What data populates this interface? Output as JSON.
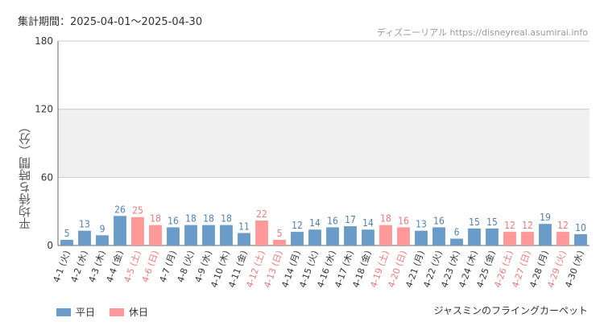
{
  "header": {
    "period": "集計期間：2025-04-01～2025-04-30",
    "source": "ディズニーリアル https://disneyreal.asumirai.info"
  },
  "footer": {
    "attraction": "ジャスミンのフライングカーペット"
  },
  "colors": {
    "weekday": "#6b9bc9",
    "holiday": "#ff9999",
    "weekday_text": "#4f82b3",
    "holiday_text": "#e87a7a",
    "band": "#f0f0f0",
    "grid": "#cccccc"
  },
  "chart_data": {
    "type": "bar",
    "ylabel": "平均待ち時間（分）",
    "ylim": [
      0,
      180
    ],
    "yticks": [
      0,
      60,
      120,
      180
    ],
    "categories": [
      "4-1 (火)",
      "4-2 (水)",
      "4-3 (木)",
      "4-4 (金)",
      "4-5 (土)",
      "4-6 (日)",
      "4-7 (月)",
      "4-8 (火)",
      "4-9 (水)",
      "4-10 (木)",
      "4-11 (金)",
      "4-12 (土)",
      "4-13 (日)",
      "4-14 (月)",
      "4-15 (火)",
      "4-16 (水)",
      "4-17 (木)",
      "4-18 (金)",
      "4-19 (土)",
      "4-20 (日)",
      "4-21 (月)",
      "4-22 (火)",
      "4-23 (水)",
      "4-24 (木)",
      "4-25 (金)",
      "4-26 (土)",
      "4-27 (日)",
      "4-28 (月)",
      "4-29 (火)",
      "4-30 (水)"
    ],
    "values": [
      5,
      13,
      9,
      26,
      25,
      18,
      16,
      18,
      18,
      18,
      11,
      22,
      5,
      12,
      14,
      16,
      17,
      14,
      18,
      16,
      13,
      16,
      6,
      15,
      15,
      12,
      12,
      19,
      12,
      10
    ],
    "holiday": [
      false,
      false,
      false,
      false,
      true,
      true,
      false,
      false,
      false,
      false,
      false,
      true,
      true,
      false,
      false,
      false,
      false,
      false,
      true,
      true,
      false,
      false,
      false,
      false,
      false,
      true,
      true,
      false,
      true,
      false
    ],
    "legend": [
      {
        "label": "平日",
        "type": "weekday"
      },
      {
        "label": "休日",
        "type": "holiday"
      }
    ],
    "legend_position": "bottom-left",
    "grid": true
  }
}
